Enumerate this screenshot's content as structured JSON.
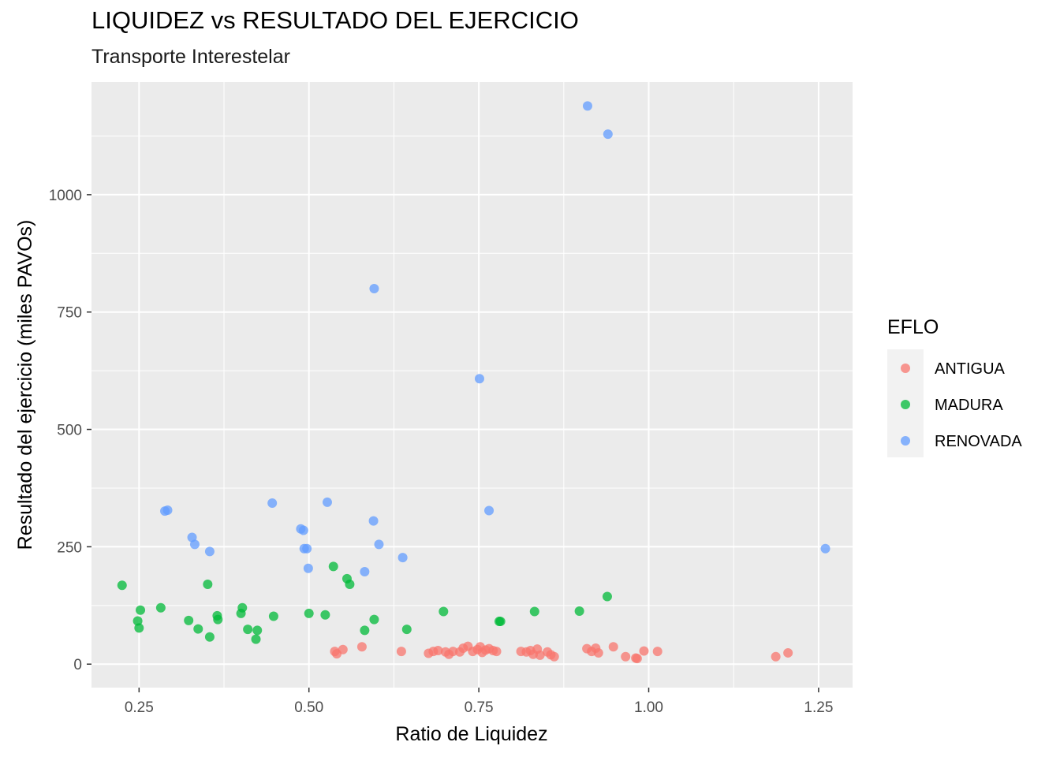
{
  "chart_data": {
    "type": "scatter",
    "title": "LIQUIDEZ vs RESULTADO DEL EJERCICIO",
    "subtitle": "Transporte Interestelar",
    "xlabel": "Ratio de Liquidez",
    "ylabel": "Resultado del ejercicio (miles PAVOs)",
    "xlim": [
      0.18,
      1.3
    ],
    "ylim": [
      -50,
      1240
    ],
    "x_ticks": [
      0.25,
      0.5,
      0.75,
      1.0,
      1.25
    ],
    "x_tick_labels": [
      "0.25",
      "0.50",
      "0.75",
      "1.00",
      "1.25"
    ],
    "y_ticks": [
      0,
      250,
      500,
      750,
      1000
    ],
    "y_tick_labels": [
      "0",
      "250",
      "500",
      "750",
      "1000"
    ],
    "grid": true,
    "legend": {
      "title": "EFLO",
      "placement": "right"
    },
    "series": [
      {
        "name": "ANTIGUA",
        "color": "#F8766D",
        "points": [
          [
            0.538,
            27
          ],
          [
            0.541,
            22
          ],
          [
            0.55,
            31
          ],
          [
            0.578,
            37
          ],
          [
            0.636,
            27
          ],
          [
            0.676,
            23
          ],
          [
            0.683,
            27
          ],
          [
            0.69,
            29
          ],
          [
            0.701,
            26
          ],
          [
            0.706,
            21
          ],
          [
            0.712,
            27
          ],
          [
            0.722,
            26
          ],
          [
            0.727,
            34
          ],
          [
            0.734,
            38
          ],
          [
            0.741,
            27
          ],
          [
            0.748,
            31
          ],
          [
            0.752,
            37
          ],
          [
            0.755,
            25
          ],
          [
            0.76,
            30
          ],
          [
            0.765,
            33
          ],
          [
            0.771,
            29
          ],
          [
            0.776,
            27
          ],
          [
            0.812,
            27
          ],
          [
            0.82,
            26
          ],
          [
            0.826,
            29
          ],
          [
            0.83,
            21
          ],
          [
            0.836,
            32
          ],
          [
            0.84,
            19
          ],
          [
            0.851,
            26
          ],
          [
            0.856,
            20
          ],
          [
            0.861,
            16
          ],
          [
            0.909,
            33
          ],
          [
            0.916,
            27
          ],
          [
            0.922,
            34
          ],
          [
            0.926,
            24
          ],
          [
            0.948,
            37
          ],
          [
            0.966,
            16
          ],
          [
            0.981,
            13
          ],
          [
            0.983,
            12
          ],
          [
            0.993,
            28
          ],
          [
            1.013,
            27
          ],
          [
            1.187,
            16
          ],
          [
            1.205,
            24
          ]
        ]
      },
      {
        "name": "MADURA",
        "color": "#00BA38",
        "points": [
          [
            0.225,
            168
          ],
          [
            0.248,
            92
          ],
          [
            0.25,
            77
          ],
          [
            0.252,
            115
          ],
          [
            0.282,
            120
          ],
          [
            0.323,
            93
          ],
          [
            0.337,
            75
          ],
          [
            0.351,
            170
          ],
          [
            0.354,
            58
          ],
          [
            0.365,
            103
          ],
          [
            0.366,
            95
          ],
          [
            0.4,
            108
          ],
          [
            0.402,
            120
          ],
          [
            0.41,
            74
          ],
          [
            0.422,
            53
          ],
          [
            0.424,
            72
          ],
          [
            0.448,
            102
          ],
          [
            0.5,
            108
          ],
          [
            0.524,
            105
          ],
          [
            0.536,
            208
          ],
          [
            0.556,
            182
          ],
          [
            0.56,
            170
          ],
          [
            0.582,
            72
          ],
          [
            0.596,
            95
          ],
          [
            0.644,
            74
          ],
          [
            0.698,
            112
          ],
          [
            0.78,
            91
          ],
          [
            0.782,
            91
          ],
          [
            0.832,
            112
          ],
          [
            0.898,
            113
          ],
          [
            0.939,
            144
          ]
        ]
      },
      {
        "name": "RENOVADA",
        "color": "#619CFF",
        "points": [
          [
            0.288,
            326
          ],
          [
            0.292,
            328
          ],
          [
            0.328,
            270
          ],
          [
            0.332,
            255
          ],
          [
            0.354,
            240
          ],
          [
            0.446,
            343
          ],
          [
            0.488,
            288
          ],
          [
            0.492,
            285
          ],
          [
            0.493,
            246
          ],
          [
            0.497,
            246
          ],
          [
            0.499,
            204
          ],
          [
            0.527,
            345
          ],
          [
            0.582,
            197
          ],
          [
            0.595,
            305
          ],
          [
            0.596,
            800
          ],
          [
            0.603,
            255
          ],
          [
            0.638,
            227
          ],
          [
            0.751,
            608
          ],
          [
            0.765,
            327
          ],
          [
            0.91,
            1189
          ],
          [
            0.94,
            1129
          ],
          [
            1.26,
            246
          ]
        ]
      }
    ]
  }
}
